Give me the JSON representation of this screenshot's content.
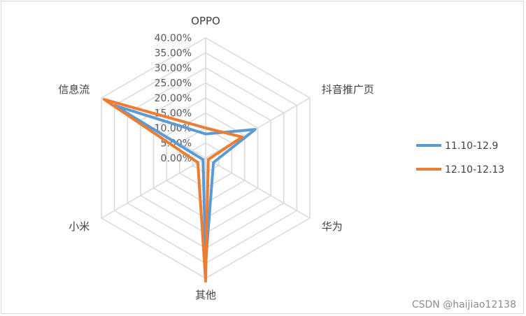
{
  "chart_data": {
    "type": "radar",
    "categories": [
      "OPPO",
      "抖音推广页",
      "华为",
      "其他",
      "小米",
      "信息流"
    ],
    "ticks": [
      "0.00%",
      "5.00%",
      "10.00%",
      "15.00%",
      "20.00%",
      "25.00%",
      "30.00%",
      "35.00%",
      "40.00%"
    ],
    "rmax": 40,
    "series": [
      {
        "name": "11.10-12.9",
        "color": "#5b9bd5",
        "values": [
          8,
          19,
          3,
          35,
          1,
          35
        ]
      },
      {
        "name": "12.10-12.13",
        "color": "#ed7d31",
        "values": [
          10,
          14,
          1,
          41,
          3,
          39
        ]
      }
    ],
    "legend": "right",
    "grid": true
  },
  "watermark": "CSDN @haijiao12138"
}
